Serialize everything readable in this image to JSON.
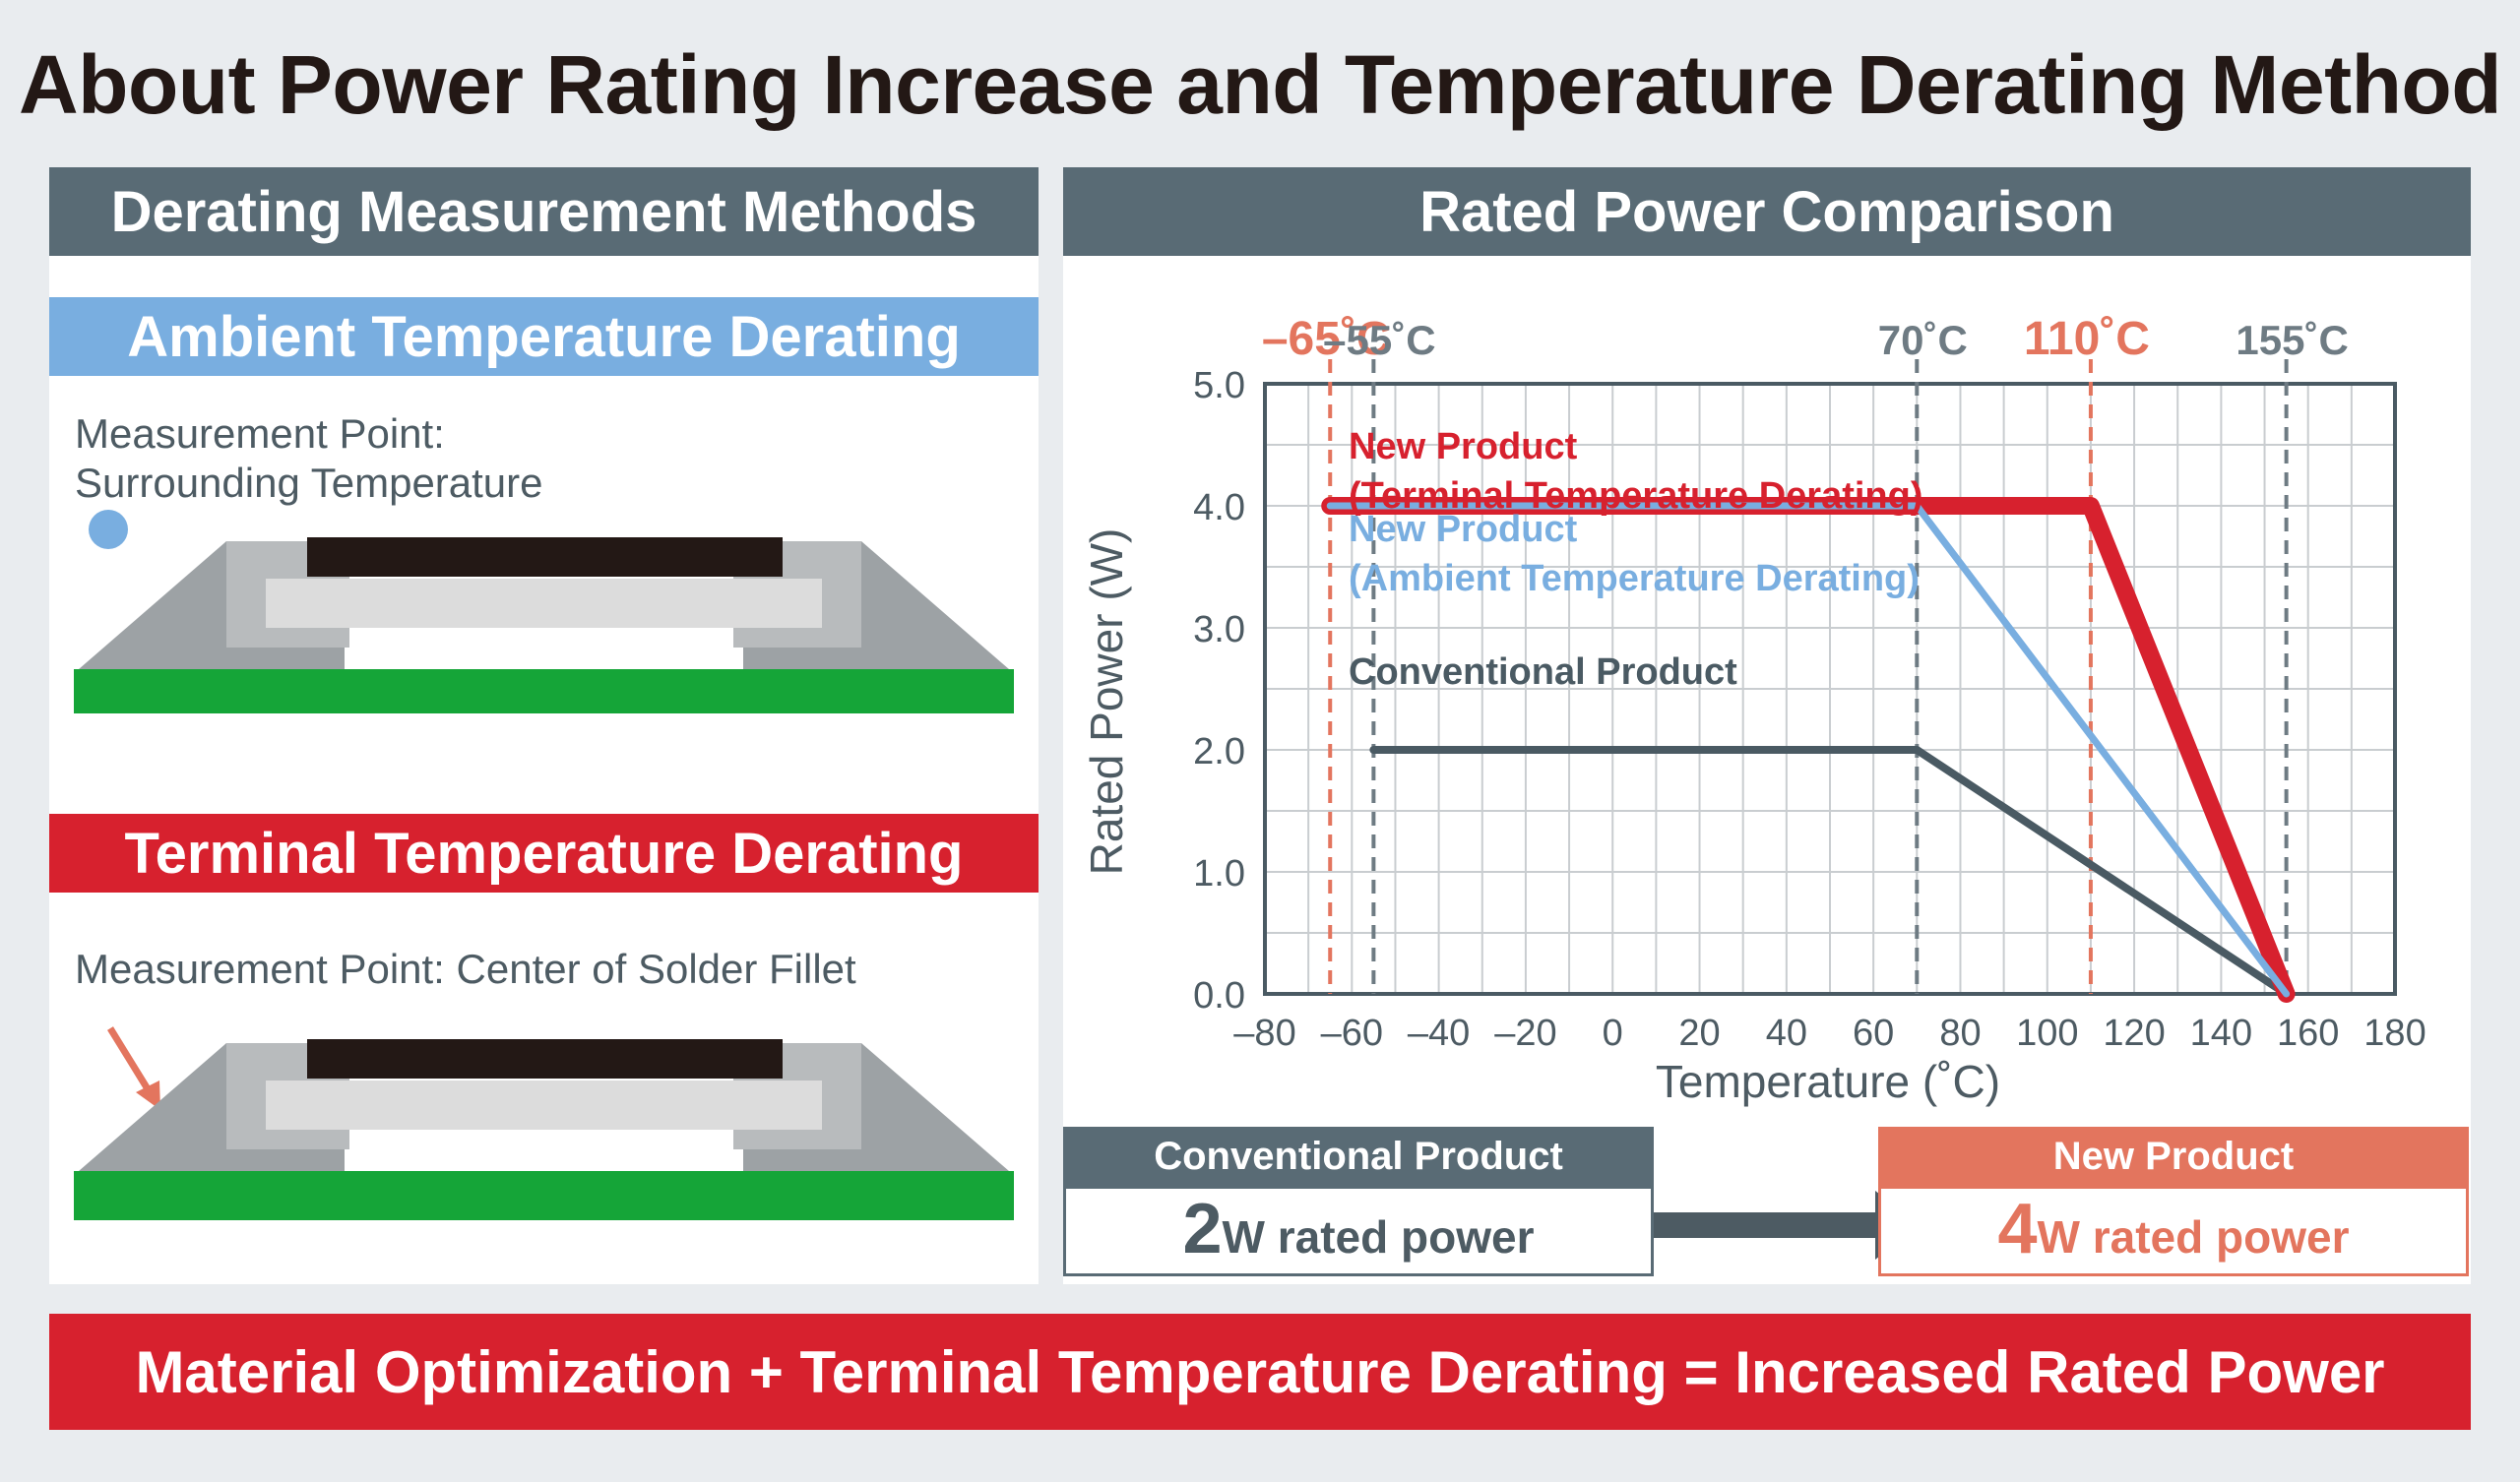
{
  "title": "About Power Rating Increase and Temperature Derating Method",
  "left_panel": {
    "header": "Derating Measurement Methods",
    "ambient": {
      "label": "Ambient Temperature Derating",
      "note_line1": "Measurement Point:",
      "note_line2": "Surrounding Temperature"
    },
    "terminal": {
      "label": "Terminal Temperature Derating",
      "note": "Measurement Point: Center of Solder Fillet"
    }
  },
  "right_panel": {
    "header": "Rated Power Comparison"
  },
  "comparison": {
    "conventional": {
      "label": "Conventional Product",
      "value": "2",
      "unit": "W rated power"
    },
    "new": {
      "label": "New Product",
      "value": "4",
      "unit": "W rated power"
    }
  },
  "footer": "Material Optimization + Terminal Temperature Derating = Increased Rated Power",
  "colors": {
    "header_gray": "#596b75",
    "ambient_blue": "#79aee0",
    "terminal_red": "#d7212e",
    "new_orange": "#e3755e",
    "pcb_green": "#15a538"
  },
  "chart_data": {
    "type": "line",
    "xlabel": "Temperature (˚C)",
    "ylabel": "Rated Power (W)",
    "xlim": [
      -80,
      180
    ],
    "ylim": [
      0,
      5
    ],
    "x_ticks": [
      -80,
      -60,
      -40,
      -20,
      0,
      20,
      40,
      60,
      80,
      100,
      120,
      140,
      160,
      180
    ],
    "x_tick_labels": [
      "–80",
      "–60",
      "–40",
      "–20",
      "0",
      "20",
      "40",
      "60",
      "80",
      "100",
      "120",
      "140",
      "160",
      "180"
    ],
    "y_ticks": [
      0,
      1,
      2,
      3,
      4,
      5
    ],
    "y_tick_labels": [
      "0.0",
      "1.0",
      "2.0",
      "3.0",
      "4.0",
      "5.0"
    ],
    "grid": true,
    "series": [
      {
        "name": "Conventional Product",
        "label_lines": [
          "Conventional Product"
        ],
        "color": "#4a5a63",
        "x": [
          -55,
          70,
          155
        ],
        "y": [
          2,
          2,
          0
        ]
      },
      {
        "name": "New Product (Ambient Temperature Derating)",
        "label_lines": [
          "New Product",
          "(Ambient Temperature Derating)"
        ],
        "color": "#79aee0",
        "x": [
          -65,
          70,
          155
        ],
        "y": [
          4,
          4,
          0
        ]
      },
      {
        "name": "New Product (Terminal Temperature Derating)",
        "label_lines": [
          "New Product",
          "(Terminal Temperature Derating)"
        ],
        "color": "#d7212e",
        "x": [
          -65,
          110,
          155
        ],
        "y": [
          4,
          4,
          0
        ]
      }
    ],
    "reference_lines": [
      {
        "x": -65,
        "label": "–65˚C",
        "color": "#e3755e"
      },
      {
        "x": -55,
        "label": "–55˚C",
        "color": "#6e7b83"
      },
      {
        "x": 70,
        "label": "70˚C",
        "color": "#6e7b83"
      },
      {
        "x": 110,
        "label": "110˚C",
        "color": "#e3755e"
      },
      {
        "x": 155,
        "label": "155˚C",
        "color": "#6e7b83"
      }
    ]
  }
}
